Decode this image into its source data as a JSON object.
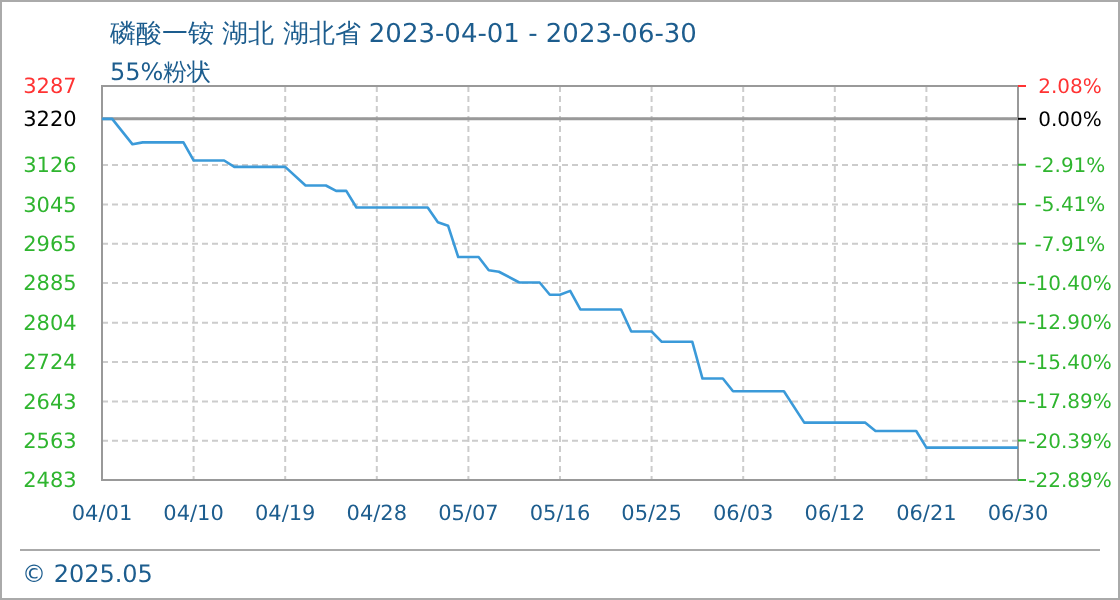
{
  "chart_data": {
    "type": "line",
    "title": "磷酸一铵 湖北 湖北省 2023-04-01 - 2023-06-30",
    "subtitle": "55%粉状",
    "annotations": [
      "© 2025.05"
    ],
    "x": [
      "2023-04-01",
      "2023-04-02",
      "2023-04-04",
      "2023-04-05",
      "2023-04-09",
      "2023-04-10",
      "2023-04-13",
      "2023-04-14",
      "2023-04-19",
      "2023-04-21",
      "2023-04-23",
      "2023-04-24",
      "2023-04-25",
      "2023-04-26",
      "2023-05-03",
      "2023-05-04",
      "2023-05-05",
      "2023-05-06",
      "2023-05-08",
      "2023-05-09",
      "2023-05-10",
      "2023-05-12",
      "2023-05-14",
      "2023-05-15",
      "2023-05-16",
      "2023-05-17",
      "2023-05-18",
      "2023-05-22",
      "2023-05-23",
      "2023-05-25",
      "2023-05-26",
      "2023-05-29",
      "2023-05-30",
      "2023-06-01",
      "2023-06-02",
      "2023-06-07",
      "2023-06-09",
      "2023-06-15",
      "2023-06-16",
      "2023-06-20",
      "2023-06-21",
      "2023-06-30"
    ],
    "series": [
      {
        "color": "#3b9ad9",
        "values": [
          3220,
          3220,
          3168,
          3172,
          3172,
          3135,
          3135,
          3122,
          3122,
          3084,
          3084,
          3073,
          3073,
          3039,
          3039,
          3009,
          3002,
          2938,
          2938,
          2911,
          2908,
          2886,
          2886,
          2861,
          2861,
          2869,
          2831,
          2831,
          2786,
          2786,
          2765,
          2765,
          2690,
          2690,
          2664,
          2664,
          2600,
          2600,
          2583,
          2583,
          2549,
          2549
        ]
      }
    ],
    "xlim": [
      "2023-04-01",
      "2023-06-30"
    ],
    "xticks": [
      {
        "value": "2023-04-01",
        "label": "04/01"
      },
      {
        "value": "2023-04-10",
        "label": "04/10"
      },
      {
        "value": "2023-04-19",
        "label": "04/19"
      },
      {
        "value": "2023-04-28",
        "label": "04/28"
      },
      {
        "value": "2023-05-07",
        "label": "05/07"
      },
      {
        "value": "2023-05-16",
        "label": "05/16"
      },
      {
        "value": "2023-05-25",
        "label": "05/25"
      },
      {
        "value": "2023-06-03",
        "label": "06/03"
      },
      {
        "value": "2023-06-12",
        "label": "06/12"
      },
      {
        "value": "2023-06-21",
        "label": "06/21"
      },
      {
        "value": "2023-06-30",
        "label": "06/30"
      }
    ],
    "ylim": [
      2483,
      3287
    ],
    "yticks": [
      2483,
      2563,
      2643,
      2724,
      2804,
      2885,
      2965,
      3045,
      3126,
      3220,
      3287
    ],
    "y2lim": [
      -22.89,
      2.08
    ],
    "y2ticks": [
      {
        "value": -22.89,
        "label": "-22.89%"
      },
      {
        "value": -20.39,
        "label": "-20.39%"
      },
      {
        "value": -17.89,
        "label": "-17.89%"
      },
      {
        "value": -15.4,
        "label": "-15.40%"
      },
      {
        "value": -12.9,
        "label": "-12.90%"
      },
      {
        "value": -10.4,
        "label": "-10.40%"
      },
      {
        "value": -7.91,
        "label": "-7.91%"
      },
      {
        "value": -5.41,
        "label": "-5.41%"
      },
      {
        "value": -2.91,
        "label": "-2.91%"
      },
      {
        "value": 0,
        "label": "0.00%"
      },
      {
        "value": 2.08,
        "label": "2.08%"
      }
    ],
    "ref_lines": [
      {
        "axis": "y",
        "value": 3220,
        "color": "#999999"
      }
    ],
    "grid": true,
    "marker": "none",
    "line_style": "solid"
  }
}
